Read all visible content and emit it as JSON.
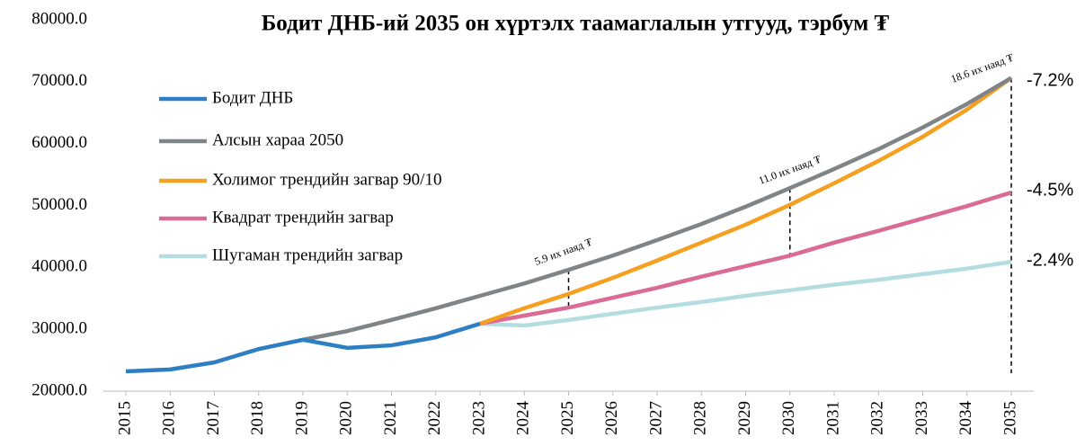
{
  "chart_data": {
    "type": "line",
    "title": "Бодит ДНБ-ий 2035 он хүртэлх таамаглалын утгууд, тэрбум ₮",
    "categories": [
      "2015",
      "2016",
      "2017",
      "2018",
      "2019",
      "2020",
      "2021",
      "2022",
      "2023",
      "2024",
      "2025",
      "2026",
      "2027",
      "2028",
      "2029",
      "2030",
      "2031",
      "2032",
      "2033",
      "2034",
      "2035"
    ],
    "series": [
      {
        "name": "Бодит ДНБ",
        "color": "#2e7ec4",
        "values": [
          23200,
          23500,
          24650,
          26800,
          28300,
          27000,
          27400,
          28700,
          30900,
          null,
          null,
          null,
          null,
          null,
          null,
          null,
          null,
          null,
          null,
          null,
          null
        ]
      },
      {
        "name": "Алсын хараа 2050",
        "color": "#7f8487",
        "values": [
          null,
          null,
          null,
          null,
          28300,
          29700,
          31500,
          33400,
          35400,
          37400,
          39600,
          41900,
          44400,
          47000,
          49800,
          52800,
          55900,
          59100,
          62600,
          66400,
          70600
        ]
      },
      {
        "name": "Холимог трендийн загвар  90/10",
        "color": "#f5a020",
        "values": [
          null,
          null,
          null,
          null,
          null,
          null,
          null,
          null,
          30900,
          33400,
          35700,
          38300,
          41100,
          44000,
          46900,
          50100,
          53600,
          57200,
          61100,
          65500,
          70600
        ]
      },
      {
        "name": "Квадрат трендийн загвар",
        "color": "#d96b94",
        "values": [
          null,
          null,
          null,
          null,
          null,
          null,
          null,
          null,
          30900,
          32200,
          33500,
          35100,
          36700,
          38500,
          40200,
          41900,
          44000,
          45900,
          47900,
          49900,
          52100
        ]
      },
      {
        "name": "Шугаман трендийн загвар",
        "color": "#b4dde2",
        "values": [
          null,
          null,
          null,
          null,
          null,
          null,
          null,
          null,
          30900,
          30600,
          31500,
          32500,
          33500,
          34400,
          35400,
          36300,
          37200,
          38000,
          38900,
          39800,
          40900
        ]
      }
    ],
    "ylim": [
      20000,
      80000
    ],
    "yticks": [
      {
        "value": 20000,
        "label": "20000.0"
      },
      {
        "value": 30000,
        "label": "30000.0"
      },
      {
        "value": 40000,
        "label": "40000.0"
      },
      {
        "value": 50000,
        "label": "50000.0"
      },
      {
        "value": 60000,
        "label": "60000.0"
      },
      {
        "value": 70000,
        "label": "70000.0"
      },
      {
        "value": 80000,
        "label": "80000.0"
      }
    ],
    "annotations": [
      "5.9 их наяд ₮",
      "11.0 их наяд ₮",
      "18.6 их наяд ₮"
    ],
    "right_labels": [
      "-7.2%",
      "-4.5%",
      "-2.4%"
    ]
  }
}
